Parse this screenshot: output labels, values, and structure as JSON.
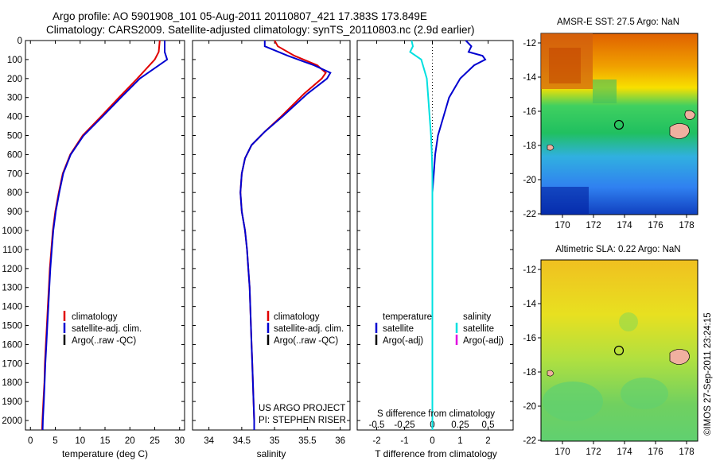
{
  "header": {
    "line1": "Argo profile: AO 5901908_101 05-Aug-2011 20110807_421 17.383S 173.849E",
    "line2": "Climatology: CARS2009. Satellite-adjusted climatology: synTS_20110803.nc (2.9d earlier)"
  },
  "colors": {
    "climatology": "#e00000",
    "satellite": "#0000d0",
    "argo": "#000000",
    "sal_satellite": "#00e0e0",
    "sal_argo": "#e000e0"
  },
  "chart_data": [
    {
      "type": "line",
      "xlabel": "temperature (deg C)",
      "xlim": [
        -1,
        31
      ],
      "xticks": [
        0,
        5,
        10,
        15,
        20,
        25,
        30
      ],
      "ylim": [
        0,
        2050
      ],
      "yticks": [
        0,
        100,
        200,
        300,
        400,
        500,
        600,
        700,
        800,
        900,
        1000,
        1100,
        1200,
        1300,
        1400,
        1500,
        1600,
        1700,
        1800,
        1900,
        2000
      ],
      "legend": [
        "climatology",
        "satellite-adj. clim.",
        "Argo(..raw -QC)"
      ],
      "series": [
        {
          "name": "climatology",
          "points": [
            [
              26.0,
              0
            ],
            [
              25.8,
              60
            ],
            [
              25.0,
              100
            ],
            [
              21.5,
              200
            ],
            [
              17.8,
              300
            ],
            [
              14.2,
              400
            ],
            [
              10.5,
              500
            ],
            [
              8.0,
              600
            ],
            [
              6.5,
              700
            ],
            [
              5.7,
              800
            ],
            [
              5.0,
              900
            ],
            [
              4.5,
              1000
            ],
            [
              4.2,
              1100
            ],
            [
              3.9,
              1200
            ],
            [
              3.7,
              1300
            ],
            [
              3.5,
              1400
            ],
            [
              3.3,
              1500
            ],
            [
              3.1,
              1600
            ],
            [
              2.9,
              1700
            ],
            [
              2.8,
              1800
            ],
            [
              2.6,
              1900
            ],
            [
              2.4,
              2000
            ],
            [
              2.35,
              2050
            ]
          ]
        },
        {
          "name": "satellite-adj. clim.",
          "points": [
            [
              27.0,
              0
            ],
            [
              27.0,
              60
            ],
            [
              27.5,
              100
            ],
            [
              22.0,
              200
            ],
            [
              18.2,
              300
            ],
            [
              14.5,
              400
            ],
            [
              10.7,
              500
            ],
            [
              8.1,
              600
            ],
            [
              6.6,
              700
            ],
            [
              5.8,
              800
            ],
            [
              5.1,
              900
            ],
            [
              4.6,
              1000
            ],
            [
              4.3,
              1100
            ],
            [
              4.0,
              1200
            ],
            [
              3.8,
              1300
            ],
            [
              3.6,
              1400
            ],
            [
              3.4,
              1500
            ],
            [
              3.2,
              1600
            ],
            [
              3.0,
              1700
            ],
            [
              2.85,
              1800
            ],
            [
              2.7,
              1900
            ],
            [
              2.5,
              2000
            ],
            [
              2.45,
              2050
            ]
          ]
        }
      ]
    },
    {
      "type": "line",
      "xlabel": "salinity",
      "xlim": [
        33.75,
        36.15
      ],
      "xticks": [
        34,
        34.5,
        35,
        35.5,
        36
      ],
      "ylim": [
        0,
        2050
      ],
      "legend": [
        "climatology",
        "satellite-adj. clim.",
        "Argo(..raw -QC)"
      ],
      "annotation": [
        "US ARGO PROJECT",
        "PI: STEPHEN RISER"
      ],
      "series": [
        {
          "name": "climatology",
          "points": [
            [
              35.0,
              0
            ],
            [
              35.05,
              30
            ],
            [
              35.3,
              80
            ],
            [
              35.65,
              130
            ],
            [
              35.78,
              170
            ],
            [
              35.72,
              200
            ],
            [
              35.45,
              280
            ],
            [
              35.1,
              400
            ],
            [
              34.85,
              480
            ],
            [
              34.65,
              550
            ],
            [
              34.55,
              620
            ],
            [
              34.5,
              700
            ],
            [
              34.48,
              800
            ],
            [
              34.5,
              900
            ],
            [
              34.55,
              1000
            ],
            [
              34.58,
              1100
            ],
            [
              34.6,
              1200
            ],
            [
              34.62,
              1300
            ],
            [
              34.63,
              1400
            ],
            [
              34.64,
              1500
            ],
            [
              34.65,
              1600
            ],
            [
              34.66,
              1700
            ],
            [
              34.67,
              1800
            ],
            [
              34.68,
              1900
            ],
            [
              34.69,
              2000
            ],
            [
              34.69,
              2050
            ]
          ]
        },
        {
          "name": "satellite-adj. clim.",
          "points": [
            [
              34.85,
              0
            ],
            [
              34.85,
              30
            ],
            [
              35.2,
              80
            ],
            [
              35.6,
              130
            ],
            [
              35.85,
              170
            ],
            [
              35.8,
              200
            ],
            [
              35.5,
              280
            ],
            [
              35.12,
              400
            ],
            [
              34.85,
              480
            ],
            [
              34.65,
              550
            ],
            [
              34.55,
              620
            ],
            [
              34.5,
              700
            ],
            [
              34.48,
              800
            ],
            [
              34.5,
              900
            ],
            [
              34.55,
              1000
            ],
            [
              34.58,
              1100
            ],
            [
              34.6,
              1200
            ],
            [
              34.62,
              1300
            ],
            [
              34.63,
              1400
            ],
            [
              34.64,
              1500
            ],
            [
              34.65,
              1600
            ],
            [
              34.66,
              1700
            ],
            [
              34.67,
              1800
            ],
            [
              34.68,
              1900
            ],
            [
              34.69,
              2000
            ],
            [
              34.69,
              2050
            ]
          ]
        }
      ]
    },
    {
      "type": "line",
      "xlabel": "T difference from climatology",
      "xlabel_top": "S difference from climatology",
      "xlim": [
        -2.7,
        2.9
      ],
      "xticks": [
        -2,
        -1,
        0,
        1,
        2
      ],
      "xticks_S": [
        -0.5,
        -0.25,
        0,
        0.25,
        0.5
      ],
      "ylim": [
        0,
        2050
      ],
      "legend_heads": [
        "temperature",
        "salinity"
      ],
      "legend": [
        "satellite",
        "Argo(-adj)",
        "satellite",
        "Argo(-adj)"
      ],
      "series": [
        {
          "name": "satellite",
          "points": [
            [
              1.2,
              0
            ],
            [
              1.4,
              30
            ],
            [
              1.3,
              60
            ],
            [
              1.8,
              80
            ],
            [
              1.9,
              100
            ],
            [
              1.5,
              130
            ],
            [
              1.0,
              200
            ],
            [
              0.6,
              300
            ],
            [
              0.4,
              400
            ],
            [
              0.2,
              500
            ],
            [
              0.1,
              600
            ],
            [
              0.05,
              700
            ],
            [
              0.0,
              800
            ],
            [
              0.0,
              900
            ],
            [
              0.0,
              1000
            ],
            [
              0.0,
              2050
            ]
          ]
        },
        {
          "name": "satellite",
          "points": [
            [
              -0.75,
              0
            ],
            [
              -0.7,
              30
            ],
            [
              -0.8,
              60
            ],
            [
              -0.4,
              100
            ],
            [
              -0.2,
              200
            ],
            [
              -0.15,
              300
            ],
            [
              -0.1,
              400
            ],
            [
              -0.05,
              500
            ],
            [
              -0.02,
              600
            ],
            [
              0.0,
              700
            ],
            [
              0.0,
              2050
            ]
          ]
        }
      ]
    }
  ],
  "maps": [
    {
      "title": "AMSR-E SST: 27.5 Argo: NaN",
      "yticks": [
        "-12",
        "-14",
        "-16",
        "-18",
        "-20",
        "-22"
      ],
      "xticks": [
        "170",
        "172",
        "174",
        "176",
        "178"
      ]
    },
    {
      "title": "Altimetric SLA: 0.22 Argo: NaN",
      "yticks": [
        "-12",
        "-14",
        "-16",
        "-18",
        "-20",
        "-22"
      ],
      "xticks": [
        "170",
        "172",
        "174",
        "176",
        "178"
      ]
    }
  ],
  "footer": {
    "stamp": "©IMOS 27-Sep-2011 23:24:15"
  }
}
